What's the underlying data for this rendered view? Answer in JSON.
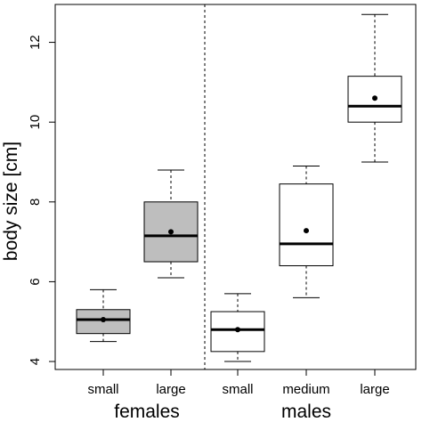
{
  "chart_data": {
    "type": "boxplot",
    "ylabel": "body size [cm]",
    "ylim": [
      3.8,
      12.95
    ],
    "yticks": [
      4,
      6,
      8,
      10,
      12
    ],
    "grid": false,
    "legend": "none",
    "groups": [
      {
        "label": "females",
        "categories": [
          "small",
          "large"
        ]
      },
      {
        "label": "males",
        "categories": [
          "small",
          "medium",
          "large"
        ]
      }
    ],
    "separator": "dashed vertical line between females and males",
    "boxes": [
      {
        "group": "females",
        "category": "small",
        "min": 4.5,
        "q1": 4.7,
        "median": 5.05,
        "q3": 5.3,
        "max": 5.8,
        "mean": 5.05,
        "fill": "#bebebe"
      },
      {
        "group": "females",
        "category": "large",
        "min": 6.1,
        "q1": 6.5,
        "median": 7.15,
        "q3": 8.0,
        "max": 8.8,
        "mean": 7.25,
        "fill": "#bebebe"
      },
      {
        "group": "males",
        "category": "small",
        "min": 4.0,
        "q1": 4.25,
        "median": 4.8,
        "q3": 5.25,
        "max": 5.7,
        "mean": 4.8,
        "fill": "#ffffff"
      },
      {
        "group": "males",
        "category": "medium",
        "min": 5.6,
        "q1": 6.4,
        "median": 6.95,
        "q3": 8.45,
        "max": 8.9,
        "mean": 7.28,
        "fill": "#ffffff"
      },
      {
        "group": "males",
        "category": "large",
        "min": 9.0,
        "q1": 10.0,
        "median": 10.4,
        "q3": 11.15,
        "max": 12.7,
        "mean": 10.6,
        "fill": "#ffffff"
      }
    ]
  }
}
